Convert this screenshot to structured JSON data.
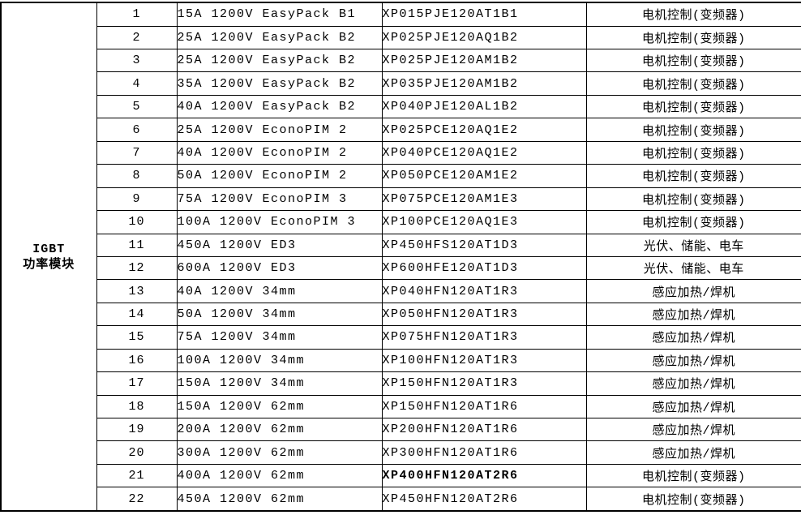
{
  "colors": {
    "border": "#000000",
    "text": "#000000",
    "background": "#ffffff"
  },
  "table": {
    "category": {
      "line1": "IGBT",
      "line2": "功率模块"
    },
    "rows": [
      {
        "no": "1",
        "spec": "15A 1200V EasyPack B1",
        "part": "XP015PJE120AT1B1",
        "part_strong": false,
        "application": "电机控制(变频器)"
      },
      {
        "no": "2",
        "spec": "25A 1200V EasyPack B2",
        "part": "XP025PJE120AQ1B2",
        "part_strong": false,
        "application": "电机控制(变频器)"
      },
      {
        "no": "3",
        "spec": "25A 1200V EasyPack B2",
        "part": "XP025PJE120AM1B2",
        "part_strong": false,
        "application": "电机控制(变频器)"
      },
      {
        "no": "4",
        "spec": "35A 1200V EasyPack B2",
        "part": "XP035PJE120AM1B2",
        "part_strong": false,
        "application": "电机控制(变频器)"
      },
      {
        "no": "5",
        "spec": "40A 1200V EasyPack B2",
        "part": "XP040PJE120AL1B2",
        "part_strong": false,
        "application": "电机控制(变频器)"
      },
      {
        "no": "6",
        "spec": "25A 1200V EconoPIM 2",
        "part": "XP025PCE120AQ1E2",
        "part_strong": false,
        "application": "电机控制(变频器)"
      },
      {
        "no": "7",
        "spec": "40A 1200V EconoPIM 2",
        "part": "XP040PCE120AQ1E2",
        "part_strong": false,
        "application": "电机控制(变频器)"
      },
      {
        "no": "8",
        "spec": "50A 1200V EconoPIM 2",
        "part": "XP050PCE120AM1E2",
        "part_strong": false,
        "application": "电机控制(变频器)"
      },
      {
        "no": "9",
        "spec": "75A 1200V EconoPIM 3",
        "part": "XP075PCE120AM1E3",
        "part_strong": false,
        "application": "电机控制(变频器)"
      },
      {
        "no": "10",
        "spec": "100A 1200V EconoPIM 3",
        "part": "XP100PCE120AQ1E3",
        "part_strong": false,
        "application": "电机控制(变频器)"
      },
      {
        "no": "11",
        "spec": "450A 1200V ED3",
        "part": "XP450HFS120AT1D3",
        "part_strong": false,
        "application": "光伏、储能、电车"
      },
      {
        "no": "12",
        "spec": "600A 1200V ED3",
        "part": "XP600HFE120AT1D3",
        "part_strong": false,
        "application": "光伏、储能、电车"
      },
      {
        "no": "13",
        "spec": "40A 1200V 34mm",
        "part": "XP040HFN120AT1R3",
        "part_strong": false,
        "application": "感应加热/焊机"
      },
      {
        "no": "14",
        "spec": "50A 1200V 34mm",
        "part": "XP050HFN120AT1R3",
        "part_strong": false,
        "application": "感应加热/焊机"
      },
      {
        "no": "15",
        "spec": "75A 1200V 34mm",
        "part": "XP075HFN120AT1R3",
        "part_strong": false,
        "application": "感应加热/焊机"
      },
      {
        "no": "16",
        "spec": "100A 1200V 34mm",
        "part": "XP100HFN120AT1R3",
        "part_strong": false,
        "application": "感应加热/焊机"
      },
      {
        "no": "17",
        "spec": "150A 1200V 34mm",
        "part": "XP150HFN120AT1R3",
        "part_strong": false,
        "application": "感应加热/焊机"
      },
      {
        "no": "18",
        "spec": "150A 1200V 62mm",
        "part": "XP150HFN120AT1R6",
        "part_strong": false,
        "application": "感应加热/焊机"
      },
      {
        "no": "19",
        "spec": "200A 1200V 62mm",
        "part": "XP200HFN120AT1R6",
        "part_strong": false,
        "application": "感应加热/焊机"
      },
      {
        "no": "20",
        "spec": "300A 1200V 62mm",
        "part": "XP300HFN120AT1R6",
        "part_strong": false,
        "application": "感应加热/焊机"
      },
      {
        "no": "21",
        "spec": "400A 1200V 62mm",
        "part": "XP400HFN120AT2R6",
        "part_strong": true,
        "application": "电机控制(变频器)"
      },
      {
        "no": "22",
        "spec": "450A 1200V 62mm",
        "part": "XP450HFN120AT2R6",
        "part_strong": false,
        "application": "电机控制(变频器)"
      }
    ]
  }
}
